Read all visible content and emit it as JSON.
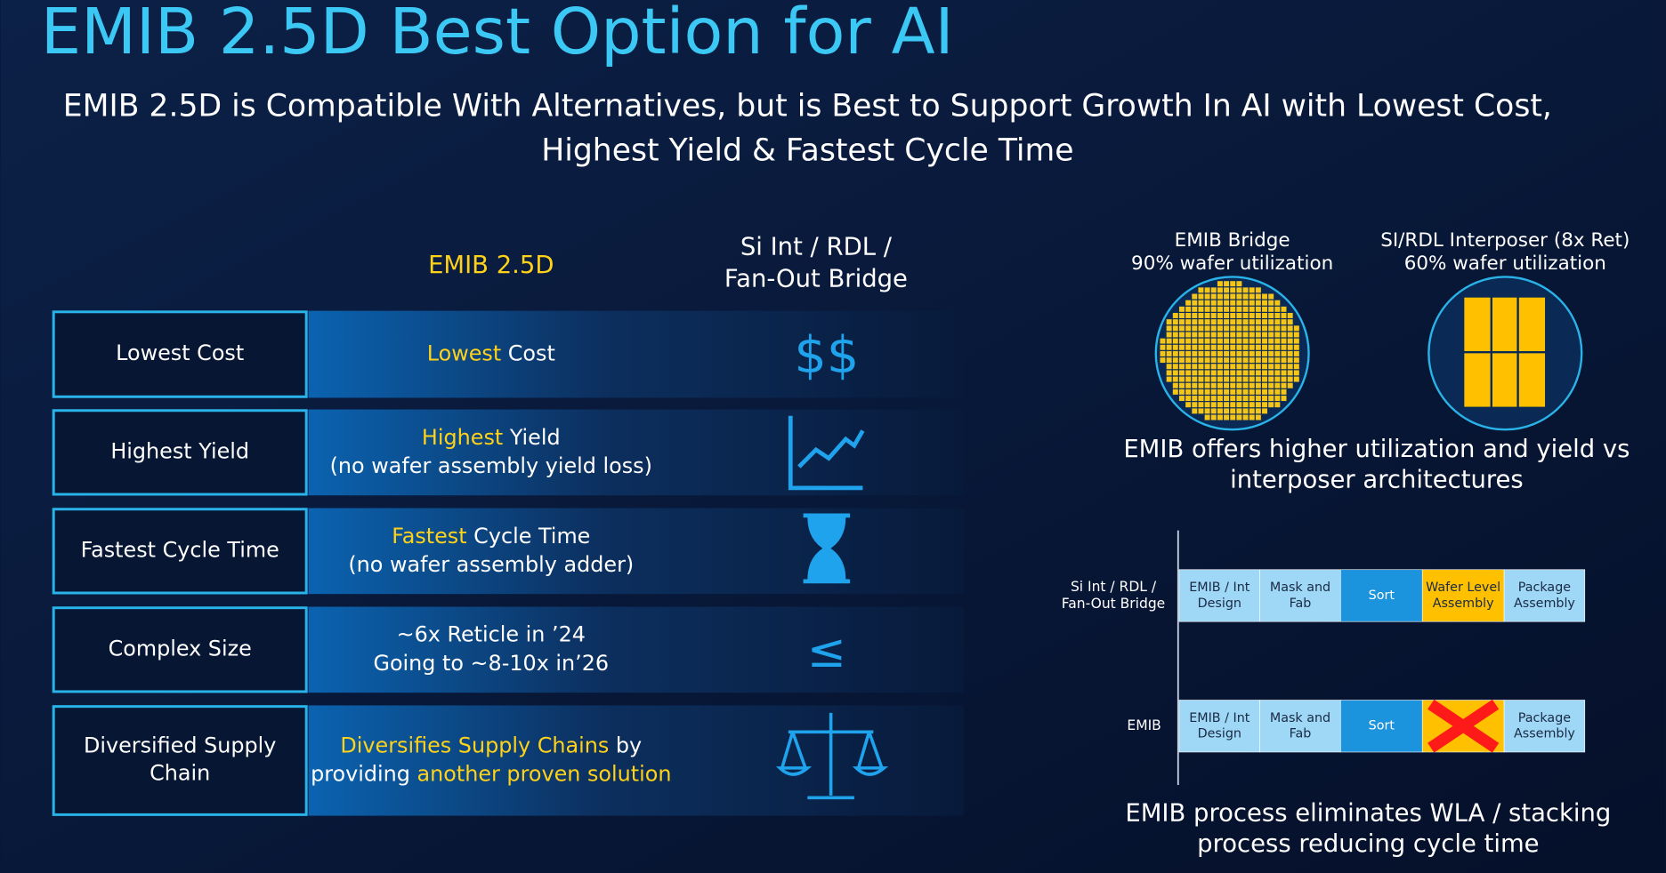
{
  "title": "EMIB 2.5D Best Option for AI",
  "subtitle": [
    "EMIB 2.5D is Compatible With Alternatives, but is Best to Support Growth In AI with Lowest Cost,",
    "Highest Yield & Fastest Cycle Time"
  ],
  "table": {
    "headers": {
      "emib": "EMIB 2.5D",
      "alt": [
        "Si Int / RDL /",
        "Fan-Out Bridge"
      ]
    },
    "rows": [
      {
        "label": [
          "Lowest Cost"
        ],
        "emib": [
          [
            {
              "text": "Lowest",
              "highlight": true
            },
            {
              "text": " Cost",
              "highlight": false
            }
          ]
        ],
        "alt": "$$"
      },
      {
        "label": [
          "Highest Yield"
        ],
        "emib": [
          [
            {
              "text": "Highest",
              "highlight": true
            },
            {
              "text": " Yield",
              "highlight": false
            }
          ],
          [
            {
              "text": "(no wafer assembly yield loss)",
              "highlight": false
            }
          ]
        ]
      },
      {
        "label": [
          "Fastest Cycle Time"
        ],
        "emib": [
          [
            {
              "text": "Fastest",
              "highlight": true
            },
            {
              "text": " Cycle Time",
              "highlight": false
            }
          ],
          [
            {
              "text": "(no wafer assembly adder)",
              "highlight": false
            }
          ]
        ]
      },
      {
        "label": [
          "Complex Size"
        ],
        "emib": [
          [
            {
              "text": "~6x Reticle in ’24",
              "highlight": false
            }
          ],
          [
            {
              "text": "Going to ~8-10x in’26",
              "highlight": false
            }
          ]
        ],
        "alt": "≤"
      },
      {
        "label": [
          "Diversified Supply",
          "Chain"
        ],
        "emib": [
          [
            {
              "text": "Diversifies Supply Chains",
              "highlight": true
            },
            {
              "text": " by",
              "highlight": false
            }
          ],
          [
            {
              "text": "providing ",
              "highlight": false
            },
            {
              "text": "another proven solution",
              "highlight": true
            }
          ]
        ]
      }
    ]
  },
  "wafers": [
    {
      "label": [
        "EMIB Bridge",
        "90% wafer utilization"
      ]
    },
    {
      "label": [
        "SI/RDL Interposer (8x Ret)",
        "60% wafer utilization"
      ]
    }
  ],
  "wafer_caption": [
    "EMIB offers higher utilization and yield vs",
    "interposer architectures"
  ],
  "process": {
    "rows": [
      {
        "name": [
          "Si Int / RDL /",
          "Fan-Out Bridge"
        ],
        "steps": [
          {
            "label": [
              "EMIB / Int",
              "Design"
            ],
            "color": "#9ed8f6"
          },
          {
            "label": [
              "Mask and",
              "Fab"
            ],
            "color": "#9ed8f6"
          },
          {
            "label": [
              "Sort"
            ],
            "color": "#1b93dd"
          },
          {
            "label": [
              "Wafer Level",
              "Assembly"
            ],
            "color": "#ffc000"
          },
          {
            "label": [
              "Package",
              "Assembly"
            ],
            "color": "#9ed8f6"
          }
        ]
      },
      {
        "name": [
          "EMIB"
        ],
        "steps": [
          {
            "label": [
              "EMIB / Int",
              "Design"
            ],
            "color": "#9ed8f6"
          },
          {
            "label": [
              "Mask and",
              "Fab"
            ],
            "color": "#9ed8f6"
          },
          {
            "label": [
              "Sort"
            ],
            "color": "#1b93dd"
          },
          {
            "color": "#ffc000",
            "eliminated": true
          },
          {
            "label": [
              "Package",
              "Assembly"
            ],
            "color": "#9ed8f6"
          }
        ]
      }
    ],
    "caption": [
      "EMIB process eliminates WLA / stacking",
      "process reducing cycle time"
    ]
  }
}
